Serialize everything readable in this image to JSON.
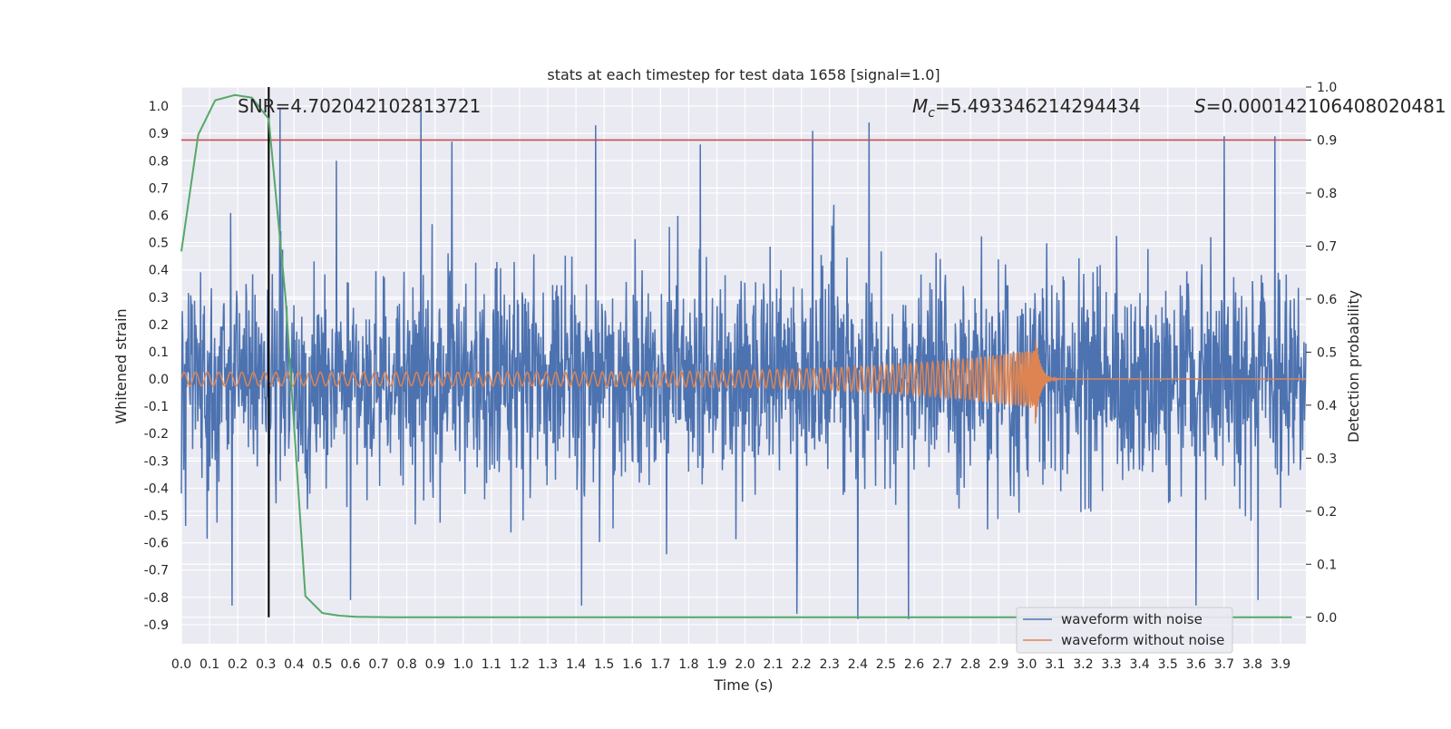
{
  "chart_data": {
    "type": "line",
    "title": "stats at each timestep for test data 1658 [signal=1.0]",
    "xlabel": "Time (s)",
    "ylabel": "Whitened strain",
    "y2label": "Detection probability",
    "xlim": [
      0.0,
      3.99
    ],
    "ylim": [
      -0.97,
      1.07
    ],
    "y2lim": [
      -0.05,
      1.0
    ],
    "x_ticks": [
      "0.0",
      "0.1",
      "0.2",
      "0.3",
      "0.4",
      "0.5",
      "0.6",
      "0.7",
      "0.8",
      "0.9",
      "1.0",
      "1.1",
      "1.2",
      "1.3",
      "1.4",
      "1.5",
      "1.6",
      "1.7",
      "1.8",
      "1.9",
      "2.0",
      "2.1",
      "2.2",
      "2.3",
      "2.4",
      "2.5",
      "2.6",
      "2.7",
      "2.8",
      "2.9",
      "3.0",
      "3.1",
      "3.2",
      "3.3",
      "3.4",
      "3.5",
      "3.6",
      "3.7",
      "3.8",
      "3.9"
    ],
    "y_ticks": [
      "1.0",
      "0.9",
      "0.8",
      "0.7",
      "0.6",
      "0.5",
      "0.4",
      "0.3",
      "0.2",
      "0.1",
      "0.0",
      "-0.1",
      "-0.2",
      "-0.3",
      "-0.4",
      "-0.5",
      "-0.6",
      "-0.7",
      "-0.8",
      "-0.9"
    ],
    "y2_ticks": [
      "1.0",
      "0.9",
      "0.8",
      "0.7",
      "0.6",
      "0.5",
      "0.4",
      "0.3",
      "0.2",
      "0.1",
      "0.0"
    ],
    "grid": true,
    "legend_position": "bottom-right",
    "annotations": {
      "snr": "SNR=4.702042102813721",
      "mc_symbol": "M",
      "mc_sub": "c",
      "mc_value": "=5.493346214294434",
      "s_symbol": "S",
      "s_value": "=0.000142106408020481"
    },
    "threshold_line": {
      "y2": 0.9,
      "color": "#c44e52"
    },
    "marker_line": {
      "x": 0.31,
      "color": "#000000"
    },
    "series": [
      {
        "name": "waveform with noise",
        "color": "#4c72b0",
        "axis": "left",
        "description_range": [
          -0.86,
          1.0
        ],
        "tall_peaks": [
          {
            "x": 0.35,
            "y": 0.99
          },
          {
            "x": 0.85,
            "y": 1.0
          },
          {
            "x": 0.96,
            "y": 0.87
          },
          {
            "x": 1.47,
            "y": 0.93
          },
          {
            "x": 2.24,
            "y": 0.91
          },
          {
            "x": 2.44,
            "y": 0.94
          },
          {
            "x": 3.7,
            "y": 0.89
          },
          {
            "x": 3.88,
            "y": 0.89
          },
          {
            "x": 0.55,
            "y": 0.8
          }
        ],
        "deep_troughs": [
          {
            "x": 0.18,
            "y": -0.83
          },
          {
            "x": 0.6,
            "y": -0.81
          },
          {
            "x": 1.42,
            "y": -0.83
          },
          {
            "x": 2.4,
            "y": -0.88
          },
          {
            "x": 2.58,
            "y": -0.88
          },
          {
            "x": 3.6,
            "y": -0.83
          },
          {
            "x": 3.82,
            "y": -0.81
          }
        ]
      },
      {
        "name": "waveform without noise",
        "color": "#dd8452",
        "axis": "left",
        "chirp": {
          "start_x": 0.0,
          "merger_x": 3.03,
          "start_amp": 0.025,
          "peak_amp": 0.11,
          "trough": -0.17
        }
      },
      {
        "name": "detection probability",
        "color": "#55a868",
        "axis": "right",
        "x": [
          0.0,
          0.06,
          0.12,
          0.19,
          0.25,
          0.31,
          0.37,
          0.44,
          0.5,
          0.56,
          0.62,
          0.69,
          0.75,
          1.0,
          1.5,
          2.0,
          2.5,
          3.0,
          3.5,
          3.94
        ],
        "values": [
          0.69,
          0.91,
          0.975,
          0.985,
          0.98,
          0.94,
          0.6,
          0.04,
          0.008,
          0.003,
          0.001,
          0.0005,
          0.0,
          0.0,
          0.0,
          0.0,
          0.0,
          0.0,
          0.0,
          0.0
        ]
      }
    ],
    "legend": [
      "waveform with noise",
      "waveform without noise"
    ]
  }
}
